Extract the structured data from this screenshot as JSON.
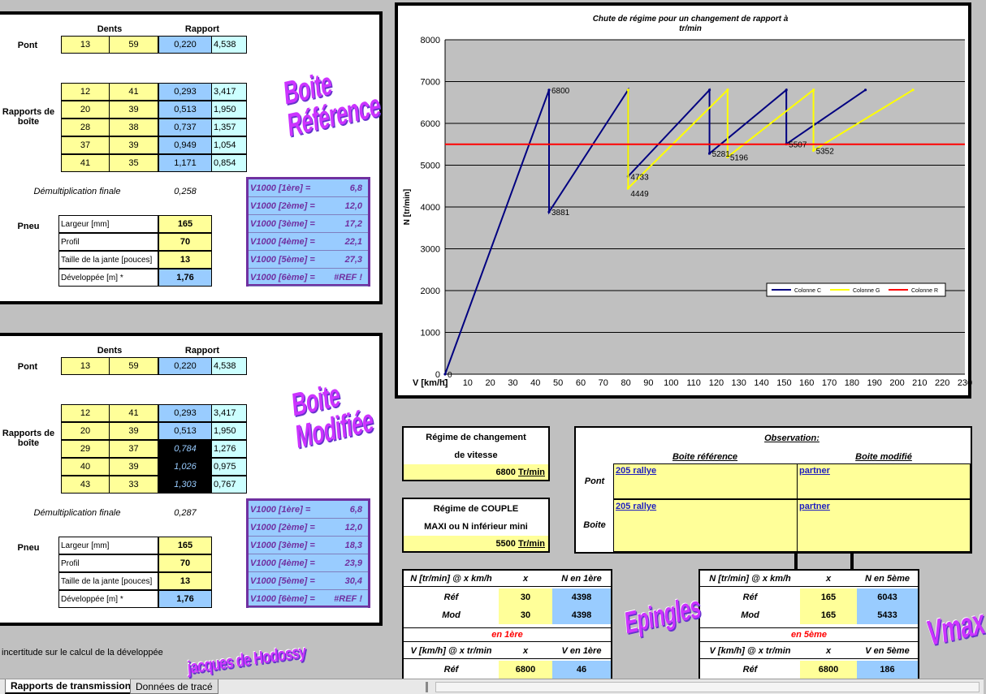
{
  "ref": {
    "hdr_dents": "Dents",
    "hdr_rapport": "Rapport",
    "pont_label": "Pont",
    "pont": [
      "13",
      "59",
      "0,220",
      "4,538"
    ],
    "rapports_label": "Rapports de boîte",
    "gears": [
      [
        "12",
        "41",
        "0,293",
        "3,417"
      ],
      [
        "20",
        "39",
        "0,513",
        "1,950"
      ],
      [
        "28",
        "38",
        "0,737",
        "1,357"
      ],
      [
        "37",
        "39",
        "0,949",
        "1,054"
      ],
      [
        "41",
        "35",
        "1,171",
        "0,854"
      ]
    ],
    "demult_label": "Démultiplication finale",
    "demult": "0,258",
    "pneu_label": "Pneu",
    "pneu": [
      {
        "label": "Largeur [mm]",
        "value": "165"
      },
      {
        "label": "Profil",
        "value": "70"
      },
      {
        "label": "Taille de la jante [pouces]",
        "value": "13"
      },
      {
        "label": "Développée [m] *",
        "value": "1,76"
      }
    ],
    "v1000": [
      {
        "label": "V1000 [1ère] =",
        "value": "6,8"
      },
      {
        "label": "V1000 [2ème] =",
        "value": "12,0"
      },
      {
        "label": "V1000 [3ème] =",
        "value": "17,2"
      },
      {
        "label": "V1000 [4ème] =",
        "value": "22,1"
      },
      {
        "label": "V1000 [5ème] =",
        "value": "27,3"
      },
      {
        "label": "V1000 [6ème] =",
        "value": "#REF !"
      }
    ],
    "art": [
      "Boite",
      "Référence"
    ]
  },
  "mod": {
    "hdr_dents": "Dents",
    "hdr_rapport": "Rapport",
    "pont_label": "Pont",
    "pont": [
      "13",
      "59",
      "0,220",
      "4,538"
    ],
    "rapports_label": "Rapports de boîte",
    "gears": [
      [
        "12",
        "41",
        "0,293",
        "3,417"
      ],
      [
        "20",
        "39",
        "0,513",
        "1,950"
      ],
      [
        "29",
        "37",
        "0,784",
        "1,276"
      ],
      [
        "40",
        "39",
        "1,026",
        "0,975"
      ],
      [
        "43",
        "33",
        "1,303",
        "0,767"
      ]
    ],
    "demult_label": "Démultiplication finale",
    "demult": "0,287",
    "pneu_label": "Pneu",
    "pneu": [
      {
        "label": "Largeur [mm]",
        "value": "165"
      },
      {
        "label": "Profil",
        "value": "70"
      },
      {
        "label": "Taille de la jante [pouces]",
        "value": "13"
      },
      {
        "label": "Développée [m] *",
        "value": "1,76"
      }
    ],
    "v1000": [
      {
        "label": "V1000 [1ère] =",
        "value": "6,8"
      },
      {
        "label": "V1000 [2ème] =",
        "value": "12,0"
      },
      {
        "label": "V1000 [3ème] =",
        "value": "18,3"
      },
      {
        "label": "V1000 [4ème] =",
        "value": "23,9"
      },
      {
        "label": "V1000 [5ème] =",
        "value": "30,4"
      },
      {
        "label": "V1000 [6ème] =",
        "value": "#REF !"
      }
    ],
    "art": [
      "Boite",
      "Modifiée"
    ]
  },
  "chart_data": {
    "type": "line",
    "title": "Chute de régime pour un changement de rapport à tr/min",
    "xlabel": "V [km/h]",
    "ylabel": "N [tr/min]",
    "xlim": [
      0,
      230
    ],
    "ylim": [
      0,
      8000
    ],
    "xticks": [
      "0",
      "10",
      "20",
      "30",
      "40",
      "50",
      "60",
      "70",
      "80",
      "90",
      "100",
      "110",
      "120",
      "130",
      "140",
      "150",
      "160",
      "170",
      "180",
      "190",
      "200",
      "210",
      "220",
      "230"
    ],
    "yticks": [
      "0",
      "1000",
      "2000",
      "3000",
      "4000",
      "5000",
      "6000",
      "7000",
      "8000"
    ],
    "legend": "right",
    "series": [
      {
        "name": "Colonne C",
        "color": "#000080",
        "x": [
          0,
          46,
          46,
          81,
          81,
          117,
          117,
          151,
          151,
          186
        ],
        "y": [
          0,
          6800,
          3881,
          6800,
          4733,
          6800,
          5281,
          6800,
          5507,
          6800
        ]
      },
      {
        "name": "Colonne G",
        "color": "#ffff00",
        "x": [
          81,
          81,
          125,
          125,
          163,
          163,
          207
        ],
        "y": [
          6800,
          4449,
          6800,
          5196,
          6800,
          5352,
          6800
        ]
      },
      {
        "name": "Colonne R",
        "color": "#ff0000",
        "x": [
          0,
          230
        ],
        "y": [
          5500,
          5500
        ]
      }
    ],
    "annotations": [
      {
        "x": 0,
        "y": 0,
        "text": "0"
      },
      {
        "x": 46,
        "y": 6800,
        "text": "6800"
      },
      {
        "x": 46,
        "y": 3881,
        "text": "3881"
      },
      {
        "x": 81,
        "y": 4733,
        "text": "4733"
      },
      {
        "x": 81,
        "y": 4449,
        "text": "4449"
      },
      {
        "x": 117,
        "y": 5281,
        "text": "5281"
      },
      {
        "x": 125,
        "y": 5196,
        "text": "5196"
      },
      {
        "x": 151,
        "y": 5507,
        "text": "5507"
      },
      {
        "x": 163,
        "y": 5352,
        "text": "5352"
      }
    ]
  },
  "regime": {
    "title1": "Régime de changement",
    "title2": "de vitesse",
    "value": "6800",
    "unit": "Tr/min"
  },
  "couple": {
    "title1": "Régime de COUPLE",
    "title2": "MAXI ou N inférieur mini",
    "value": "5500",
    "unit": "Tr/min"
  },
  "observation": {
    "title": "Observation:",
    "col1": "Boite référence",
    "col2": "Boite modifié",
    "rows": [
      {
        "label": "Pont",
        "v1": "205 rallye",
        "v2": "partner"
      },
      {
        "label": "Boite",
        "v1": "205 rallye",
        "v2": "partner"
      }
    ]
  },
  "epingles": {
    "art": "Epingles",
    "h1": [
      "N [tr/min] @ x km/h",
      "x",
      "N en 1ère"
    ],
    "r1": [
      [
        "Réf",
        "30",
        "4398"
      ],
      [
        "Mod",
        "30",
        "4398"
      ]
    ],
    "mid": "en 1ère",
    "h2": [
      "V [km/h] @ x tr/min",
      "x",
      "V en 1ère"
    ],
    "r2": [
      [
        "Réf",
        "6800",
        "46"
      ]
    ]
  },
  "vmax": {
    "art": "Vmax",
    "h1": [
      "N [tr/min] @ x km/h",
      "x",
      "N en 5ème"
    ],
    "r1": [
      [
        "Réf",
        "165",
        "6043"
      ],
      [
        "Mod",
        "165",
        "5433"
      ]
    ],
    "mid": "en 5ème",
    "h2": [
      "V [km/h] @ x tr/min",
      "x",
      "V en 5ème"
    ],
    "r2": [
      [
        "Réf",
        "6800",
        "186"
      ]
    ]
  },
  "footnote": "incertitude sur le calcul de la développée",
  "signature": "jacques de Hodossy",
  "tabs": [
    "Rapports de transmission",
    "Données de tracé"
  ]
}
